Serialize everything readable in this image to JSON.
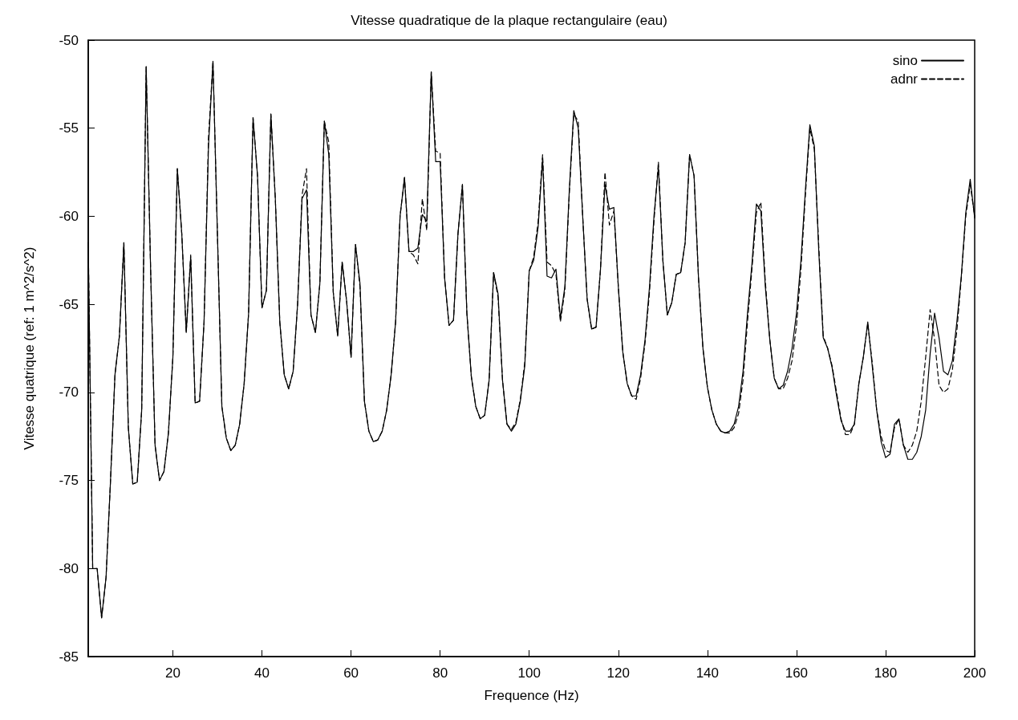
{
  "chart_data": {
    "type": "line",
    "title": "Vitesse quadratique de la plaque rectangulaire (eau)",
    "xlabel": "Frequence (Hz)",
    "ylabel": "Vitesse quatrique (ref: 1 m^2/s^2)",
    "x": [
      1,
      2,
      3,
      4,
      5,
      6,
      7,
      8,
      9,
      10,
      11,
      12,
      13,
      14,
      15,
      16,
      17,
      18,
      19,
      20,
      21,
      22,
      23,
      24,
      25,
      26,
      27,
      28,
      29,
      30,
      31,
      32,
      33,
      34,
      35,
      36,
      37,
      38,
      39,
      40,
      41,
      42,
      43,
      44,
      45,
      46,
      47,
      48,
      49,
      50,
      51,
      52,
      53,
      54,
      55,
      56,
      57,
      58,
      59,
      60,
      61,
      62,
      63,
      64,
      65,
      66,
      67,
      68,
      69,
      70,
      71,
      72,
      73,
      74,
      75,
      76,
      77,
      78,
      79,
      80,
      81,
      82,
      83,
      84,
      85,
      86,
      87,
      88,
      89,
      90,
      91,
      92,
      93,
      94,
      95,
      96,
      97,
      98,
      99,
      100,
      101,
      102,
      103,
      104,
      105,
      106,
      107,
      108,
      109,
      110,
      111,
      112,
      113,
      114,
      115,
      116,
      117,
      118,
      119,
      120,
      121,
      122,
      123,
      124,
      125,
      126,
      127,
      128,
      129,
      130,
      131,
      132,
      133,
      134,
      135,
      136,
      137,
      138,
      139,
      140,
      141,
      142,
      143,
      144,
      145,
      146,
      147,
      148,
      149,
      150,
      151,
      152,
      153,
      154,
      155,
      156,
      157,
      158,
      159,
      160,
      161,
      162,
      163,
      164,
      165,
      166,
      167,
      168,
      169,
      170,
      171,
      172,
      173,
      174,
      175,
      176,
      177,
      178,
      179,
      180,
      181,
      182,
      183,
      184,
      185,
      186,
      187,
      188,
      189,
      190,
      191,
      192,
      193,
      194,
      195,
      196,
      197,
      198,
      199,
      200
    ],
    "series": [
      {
        "name": "sino",
        "color": "#000000",
        "line_style": "solid",
        "values": [
          -61.5,
          -80,
          -80,
          -82.8,
          -80.5,
          -75,
          -69,
          -66.8,
          -61.5,
          -72,
          -75.2,
          -75.1,
          -71,
          -51.5,
          -63,
          -73,
          -75,
          -74.5,
          -72.3,
          -68,
          -57.3,
          -61,
          -66.6,
          -62.3,
          -70.6,
          -70.5,
          -66,
          -56,
          -51.2,
          -61,
          -70.8,
          -72.6,
          -73.3,
          -73,
          -71.8,
          -69.5,
          -65.5,
          -54.4,
          -57.7,
          -65.2,
          -64.2,
          -54.2,
          -59,
          -66,
          -69,
          -69.8,
          -68.8,
          -65,
          -59,
          -58.5,
          -65.6,
          -66.6,
          -63.8,
          -54.6,
          -56.5,
          -64.3,
          -66.8,
          -62.6,
          -64.8,
          -68,
          -61.6,
          -63.8,
          -70.5,
          -72.2,
          -72.8,
          -72.7,
          -72.2,
          -71,
          -69,
          -66,
          -60,
          -57.8,
          -62,
          -62,
          -61.8,
          -59.9,
          -60.3,
          -51.8,
          -56.9,
          -56.9,
          -63.5,
          -66.2,
          -65.9,
          -61,
          -58.2,
          -65.5,
          -69.1,
          -70.8,
          -71.5,
          -71.3,
          -69.3,
          -63.2,
          -64.4,
          -69.3,
          -71.8,
          -72.2,
          -71.8,
          -70.5,
          -68.5,
          -63.1,
          -62.5,
          -60.6,
          -56.7,
          -63.4,
          -63.5,
          -63,
          -65.8,
          -64,
          -58.5,
          -54,
          -55,
          -60,
          -64.7,
          -66.4,
          -66.3,
          -63,
          -58.2,
          -59.6,
          -59.5,
          -64,
          -67.7,
          -69.5,
          -70.2,
          -70.2,
          -69,
          -67,
          -64,
          -60,
          -57.2,
          -62.5,
          -65.6,
          -64.9,
          -63.3,
          -63.2,
          -61.5,
          -56.5,
          -57.7,
          -63.5,
          -67.5,
          -69.7,
          -71,
          -71.8,
          -72.2,
          -72.3,
          -72.2,
          -71.8,
          -70.8,
          -68.8,
          -65.5,
          -62.7,
          -59.3,
          -59.7,
          -64,
          -67,
          -69.2,
          -69.8,
          -69.6,
          -68.8,
          -67.5,
          -65.5,
          -62.5,
          -58.5,
          -54.8,
          -56,
          -62,
          -66.9,
          -67.5,
          -68.6,
          -70.2,
          -71.6,
          -72.2,
          -72.2,
          -71.8,
          -69.5,
          -68,
          -66,
          -68.5,
          -71,
          -72.8,
          -73.7,
          -73.5,
          -71.8,
          -71.5,
          -73,
          -73.8,
          -73.8,
          -73.4,
          -72.5,
          -71,
          -67.8,
          -65.5,
          -66.9,
          -68.8,
          -69,
          -68.2,
          -66,
          -63.4,
          -59.8,
          -57.9,
          -60.1
        ]
      },
      {
        "name": "adnr",
        "color": "#000000",
        "line_style": "dashed",
        "values": [
          -61.5,
          -80,
          -80,
          -82.8,
          -80.5,
          -75,
          -69,
          -66.8,
          -61.5,
          -72,
          -75.2,
          -75.1,
          -71,
          -51.5,
          -63,
          -73,
          -75,
          -74.5,
          -72.3,
          -68,
          -57.3,
          -61,
          -66.6,
          -62.2,
          -70.6,
          -70.5,
          -66,
          -55.5,
          -51.2,
          -61,
          -70.8,
          -72.6,
          -73.3,
          -73,
          -71.8,
          -69.5,
          -65.5,
          -54.4,
          -57.7,
          -65.2,
          -64.2,
          -54.2,
          -59,
          -66,
          -69,
          -69.8,
          -68.8,
          -65,
          -58.8,
          -57.3,
          -65.6,
          -66.6,
          -63.8,
          -54.6,
          -55.8,
          -64.3,
          -66.8,
          -62.6,
          -64.8,
          -68,
          -61.6,
          -64,
          -70.5,
          -72.2,
          -72.8,
          -72.7,
          -72.2,
          -71,
          -69,
          -66,
          -60,
          -57.8,
          -62,
          -62.2,
          -62.7,
          -59,
          -60.8,
          -51.8,
          -56.3,
          -56.4,
          -63.5,
          -66.2,
          -65.9,
          -61,
          -58.2,
          -65.5,
          -69.1,
          -70.8,
          -71.5,
          -71.3,
          -69.3,
          -63.2,
          -64.6,
          -69.3,
          -71.8,
          -72.1,
          -71.7,
          -70.4,
          -68.3,
          -63.1,
          -62.3,
          -60.3,
          -56.5,
          -62.6,
          -62.8,
          -63.3,
          -66,
          -64.2,
          -58.7,
          -54.2,
          -54.6,
          -60,
          -64.7,
          -66.4,
          -66.3,
          -63,
          -57.5,
          -60.5,
          -59.7,
          -64,
          -67.7,
          -69.5,
          -70.2,
          -70.4,
          -69.2,
          -67.2,
          -64.3,
          -60.3,
          -56.9,
          -62.5,
          -65.6,
          -64.9,
          -63.3,
          -63.2,
          -61.5,
          -56.5,
          -57.7,
          -63.5,
          -67.5,
          -69.7,
          -71,
          -71.8,
          -72.2,
          -72.3,
          -72.3,
          -72,
          -71.2,
          -69.3,
          -66,
          -63,
          -59.8,
          -59.2,
          -63.7,
          -67,
          -69.2,
          -69.8,
          -69.8,
          -69.2,
          -68.2,
          -66.2,
          -63,
          -58.8,
          -55,
          -56.2,
          -61.7,
          -66.8,
          -67.5,
          -68.5,
          -70,
          -71.5,
          -72.4,
          -72.4,
          -71.8,
          -69.5,
          -68,
          -66.1,
          -68.3,
          -71,
          -72.5,
          -73.3,
          -73.4,
          -72,
          -71.5,
          -73,
          -73.4,
          -73,
          -72.2,
          -70.5,
          -68,
          -65.3,
          -67,
          -69.6,
          -70,
          -69.8,
          -68.7,
          -66.5,
          -63.5,
          -60,
          -58.2,
          -60
        ]
      }
    ],
    "xlim": [
      1,
      200
    ],
    "xticks": [
      20,
      40,
      60,
      80,
      100,
      120,
      140,
      160,
      180,
      200
    ],
    "ylim": [
      -85,
      -50
    ],
    "yticks": [
      -85,
      -80,
      -75,
      -70,
      -65,
      -60,
      -55,
      -50
    ],
    "legend": "top right",
    "marker": "none"
  }
}
